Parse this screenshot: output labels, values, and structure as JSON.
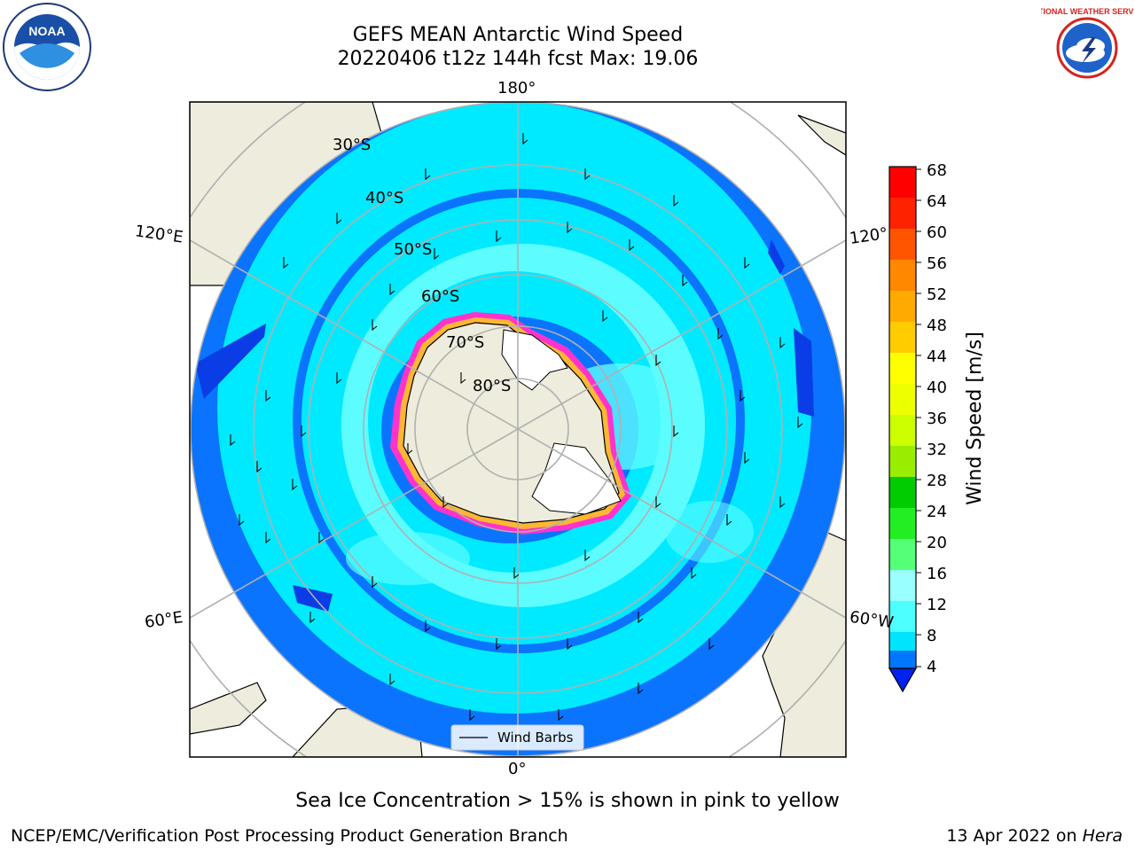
{
  "title_line1": "GEFS MEAN Antarctic Wind Speed",
  "title_line2": "20220406 t12z 144h fcst   Max: 19.06",
  "lon_labels": {
    "top": "180°",
    "bottom": "0°",
    "left_upper": "120°E",
    "left_lower": "60°E",
    "right_upper": "120°",
    "right_lower": "60°W"
  },
  "lat_labels": [
    "30°S",
    "40°S",
    "50°S",
    "60°S",
    "70°S",
    "80°S"
  ],
  "legend_label": "Wind Barbs",
  "colorbar": {
    "label": "Wind Speed [m/s]",
    "ticks": [
      "4",
      "8",
      "12",
      "16",
      "20",
      "24",
      "28",
      "32",
      "36",
      "40",
      "44",
      "48",
      "52",
      "56",
      "60",
      "64",
      "68"
    ],
    "colors": [
      "#0044ff",
      "#0077ff",
      "#00e5ff",
      "#4dffff",
      "#99ffff",
      "#bfffff",
      "#55ff77",
      "#22ee22",
      "#00cc00",
      "#99ee00",
      "#ccff00",
      "#eeff00",
      "#ffff00",
      "#ffcc00",
      "#ffaa00",
      "#ff8800",
      "#ff5500",
      "#ff2200",
      "#ff0000"
    ],
    "extend_color": "#0022ee"
  },
  "caption": "Sea Ice Concentration > 15% is shown in pink to yellow",
  "credit": "NCEP/EMC/Verification Post Processing Product Generation Branch",
  "date_prefix": "13 Apr 2022 on ",
  "date_machine": "Hera",
  "noaa_text": "NOAA",
  "nws_text": "NATIONAL WEATHER SERVICE",
  "map_colors": {
    "land": "#eeecdc",
    "ocean_low": "#0a74ff",
    "ocean_mid": "#00eaff",
    "ocean_high": "#5dfcff",
    "deep": "#0a3de6",
    "ice_edge": "#ff33cc",
    "ice_core": "#ffb733"
  }
}
